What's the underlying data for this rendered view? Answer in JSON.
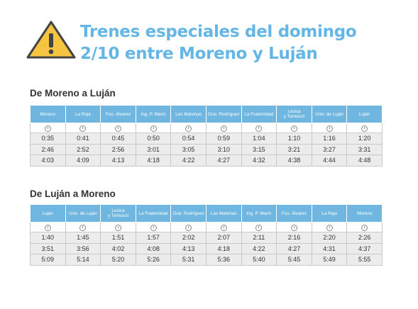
{
  "title": {
    "line1": "Trenes especiales del domingo",
    "line2": "2/10 entre Moreno y Luján"
  },
  "colors": {
    "title": "#63b6e6",
    "header_bg": "#6fb7e0",
    "warning_fill": "#f5c542",
    "row_bg": "#ececec"
  },
  "icons": {
    "warning": "warning-triangle-icon",
    "clock": "clock-icon"
  },
  "table1": {
    "caption": "De Moreno a Luján",
    "headers": [
      "Moreno",
      "La Reja",
      "Fco. Álvarez",
      "Ing. P. Marín",
      "Las Malvinas",
      "Gral. Rodríguez",
      "La Fraternidad",
      "Lezica\ny Torrezuri",
      "Univ. de Luján",
      "Luján"
    ],
    "rows": [
      [
        "0:35",
        "0:41",
        "0:45",
        "0:50",
        "0:54",
        "0:59",
        "1:04",
        "1:10",
        "1:16",
        "1:20"
      ],
      [
        "2:46",
        "2:52",
        "2:56",
        "3:01",
        "3:05",
        "3:10",
        "3:15",
        "3:21",
        "3:27",
        "3:31"
      ],
      [
        "4:03",
        "4:09",
        "4:13",
        "4:18",
        "4:22",
        "4:27",
        "4:32",
        "4:38",
        "4:44",
        "4:48"
      ]
    ]
  },
  "table2": {
    "caption": "De Luján a Moreno",
    "headers": [
      "Luján",
      "Univ. de Luján",
      "Lezica\ny Torrezuri",
      "La Fraternidad",
      "Gral. Rodríguez",
      "Las Malvinas",
      "Ing. P. Marín",
      "Fco. Álvarez",
      "La Reja",
      "Moreno"
    ],
    "rows": [
      [
        "1:40",
        "1:45",
        "1:51",
        "1:57",
        "2:02",
        "2:07",
        "2:11",
        "2:16",
        "2:20",
        "2:26"
      ],
      [
        "3:51",
        "3:56",
        "4:02",
        "4:08",
        "4:13",
        "4:18",
        "4:22",
        "4:27",
        "4:31",
        "4:37"
      ],
      [
        "5:09",
        "5:14",
        "5:20",
        "5:26",
        "5:31",
        "5:36",
        "5:40",
        "5:45",
        "5:49",
        "5:55"
      ]
    ]
  }
}
